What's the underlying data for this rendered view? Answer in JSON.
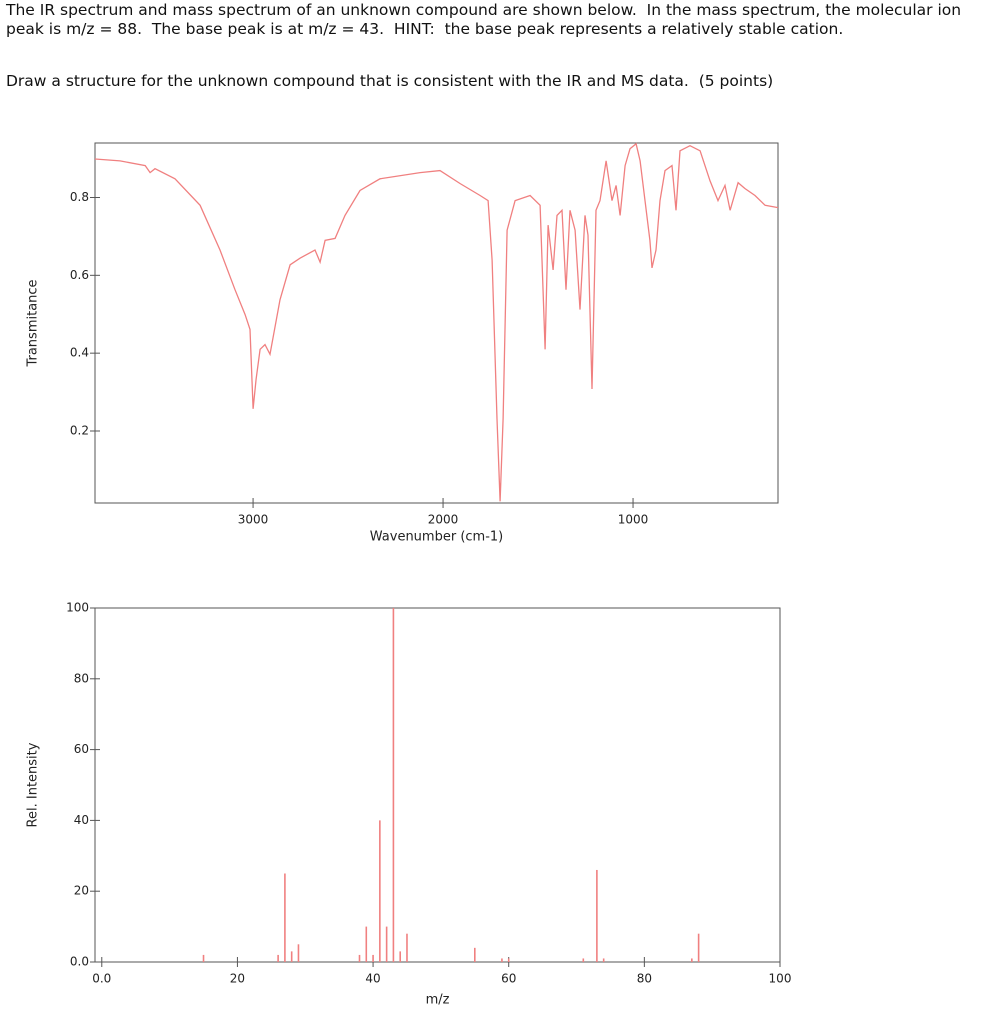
{
  "text": {
    "paragraphs": [
      "The IR spectrum and mass spectrum of an unknown compound are shown below.  In the mass spectrum, the molecular ion peak is m/z = 88.  The base peak is at m/z = 43.  HINT:  the base peak represents a relatively stable cation.",
      "Draw a structure for the unknown compound that is consistent with the IR and MS data.  (5 points)"
    ]
  },
  "chart_data": [
    {
      "type": "line",
      "x_label": "Wavenumber (cm-1)",
      "y_label": "Transmitance",
      "color": "#f08080",
      "xlim": [
        3832,
        237
      ],
      "ylim": [
        0.015,
        0.94
      ],
      "xticks": [
        3000,
        2000,
        1000
      ],
      "yticks": [
        0.2,
        0.4,
        0.6,
        0.8
      ],
      "grid": false,
      "x": [
        3832,
        3700,
        3568,
        3542,
        3516,
        3411,
        3279,
        3174,
        3095,
        3042,
        3016,
        3000,
        2984,
        2963,
        2937,
        2911,
        2858,
        2805,
        2753,
        2674,
        2647,
        2621,
        2568,
        2516,
        2437,
        2332,
        2121,
        2016,
        1911,
        1805,
        1763,
        1742,
        1716,
        1700,
        1684,
        1663,
        1621,
        1542,
        1489,
        1463,
        1447,
        1421,
        1400,
        1374,
        1353,
        1332,
        1305,
        1279,
        1253,
        1237,
        1216,
        1195,
        1174,
        1142,
        1111,
        1089,
        1068,
        1042,
        1016,
        984,
        963,
        937,
        911,
        900,
        879,
        858,
        832,
        795,
        774,
        753,
        700,
        647,
        595,
        553,
        516,
        489,
        447,
        411,
        358,
        305,
        237
      ],
      "values": [
        0.899,
        0.894,
        0.882,
        0.864,
        0.874,
        0.848,
        0.78,
        0.665,
        0.563,
        0.499,
        0.461,
        0.257,
        0.333,
        0.41,
        0.422,
        0.397,
        0.537,
        0.627,
        0.644,
        0.665,
        0.634,
        0.69,
        0.695,
        0.754,
        0.818,
        0.848,
        0.864,
        0.869,
        0.836,
        0.805,
        0.792,
        0.639,
        0.231,
        0.019,
        0.231,
        0.716,
        0.792,
        0.805,
        0.78,
        0.41,
        0.729,
        0.614,
        0.754,
        0.767,
        0.563,
        0.767,
        0.716,
        0.512,
        0.754,
        0.703,
        0.308,
        0.767,
        0.792,
        0.894,
        0.792,
        0.831,
        0.754,
        0.882,
        0.925,
        0.938,
        0.894,
        0.792,
        0.69,
        0.619,
        0.665,
        0.792,
        0.869,
        0.882,
        0.767,
        0.92,
        0.933,
        0.92,
        0.843,
        0.792,
        0.831,
        0.767,
        0.838,
        0.823,
        0.805,
        0.78,
        0.774
      ]
    },
    {
      "type": "bar",
      "x_label": "m/z",
      "y_label": "Rel. Intensity",
      "color": "#f08080",
      "xlim": [
        -1,
        100
      ],
      "ylim": [
        0,
        100
      ],
      "xticks": [
        {
          "value": 0,
          "label": "0.0"
        },
        20,
        40,
        60,
        80,
        100
      ],
      "yticks": [
        {
          "value": 0,
          "label": "0.0"
        },
        20,
        40,
        60,
        80,
        100
      ],
      "grid": false,
      "x": [
        15,
        26,
        27,
        28,
        29,
        38,
        39,
        40,
        41,
        42,
        43,
        44,
        45,
        55,
        59,
        60,
        71,
        73,
        74,
        87,
        88
      ],
      "values": [
        2,
        2,
        25,
        3,
        5,
        2,
        10,
        2,
        40,
        10,
        100,
        3,
        8,
        4,
        1,
        1,
        1,
        26,
        1,
        1,
        8
      ]
    }
  ]
}
